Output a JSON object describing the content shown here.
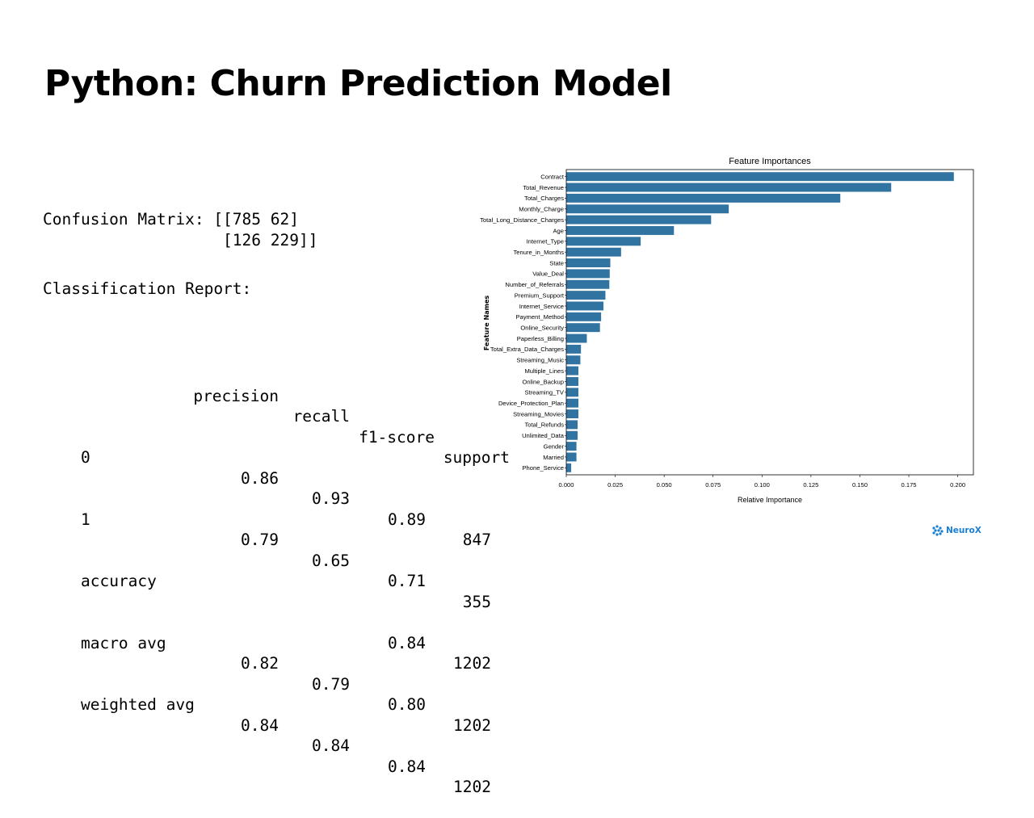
{
  "slide": {
    "title": "Python: Churn Prediction Model"
  },
  "confusion": {
    "line1": "Confusion Matrix: [[785 62]",
    "line2": "                   [126 229]]"
  },
  "report": {
    "title": "Classification Report:",
    "headers": [
      "precision",
      "recall",
      "f1-score",
      "support"
    ],
    "rows": [
      {
        "label": "0",
        "cells": [
          "0.86",
          "0.93",
          "0.89",
          "847"
        ]
      },
      {
        "label": "1",
        "cells": [
          "0.79",
          "0.65",
          "0.71",
          "355"
        ]
      },
      {
        "label": "accuracy",
        "cells": [
          "",
          "",
          "0.84",
          "1202"
        ]
      },
      {
        "label": "macro avg",
        "cells": [
          "0.82",
          "0.79",
          "0.80",
          "1202"
        ]
      },
      {
        "label": "weighted avg",
        "cells": [
          "0.84",
          "0.84",
          "0.84",
          "1202"
        ]
      }
    ]
  },
  "logo": {
    "text": "NeuroX",
    "color": "#1a7fd1"
  },
  "chart_data": {
    "type": "bar",
    "orientation": "horizontal",
    "title": "Feature Importances",
    "xlabel": "Relative Importance",
    "ylabel": "Feature Names",
    "xlim": [
      0,
      0.208
    ],
    "xticks": [
      "0.000",
      "0.025",
      "0.050",
      "0.075",
      "0.100",
      "0.125",
      "0.150",
      "0.175",
      "0.200"
    ],
    "bar_color": "#3274a1",
    "categories": [
      "Contract",
      "Total_Revenue",
      "Total_Charges",
      "Monthly_Charge",
      "Total_Long_Distance_Charges",
      "Age",
      "Internet_Type",
      "Tenure_in_Months",
      "State",
      "Value_Deal",
      "Number_of_Referrals",
      "Premium_Support",
      "Internet_Service",
      "Payment_Method",
      "Online_Security",
      "Paperless_Billing",
      "Total_Extra_Data_Charges",
      "Streaming_Music",
      "Multiple_Lines",
      "Online_Backup",
      "Streaming_TV",
      "Device_Protection_Plan",
      "Streaming_Movies",
      "Total_Refunds",
      "Unlimited_Data",
      "Gender",
      "Married",
      "Phone_Service"
    ],
    "values": [
      0.198,
      0.166,
      0.14,
      0.083,
      0.074,
      0.055,
      0.038,
      0.028,
      0.0225,
      0.0222,
      0.022,
      0.02,
      0.019,
      0.0178,
      0.0172,
      0.0105,
      0.0075,
      0.0072,
      0.0062,
      0.0062,
      0.0062,
      0.0062,
      0.0062,
      0.0058,
      0.0058,
      0.0052,
      0.0052,
      0.0025
    ]
  }
}
